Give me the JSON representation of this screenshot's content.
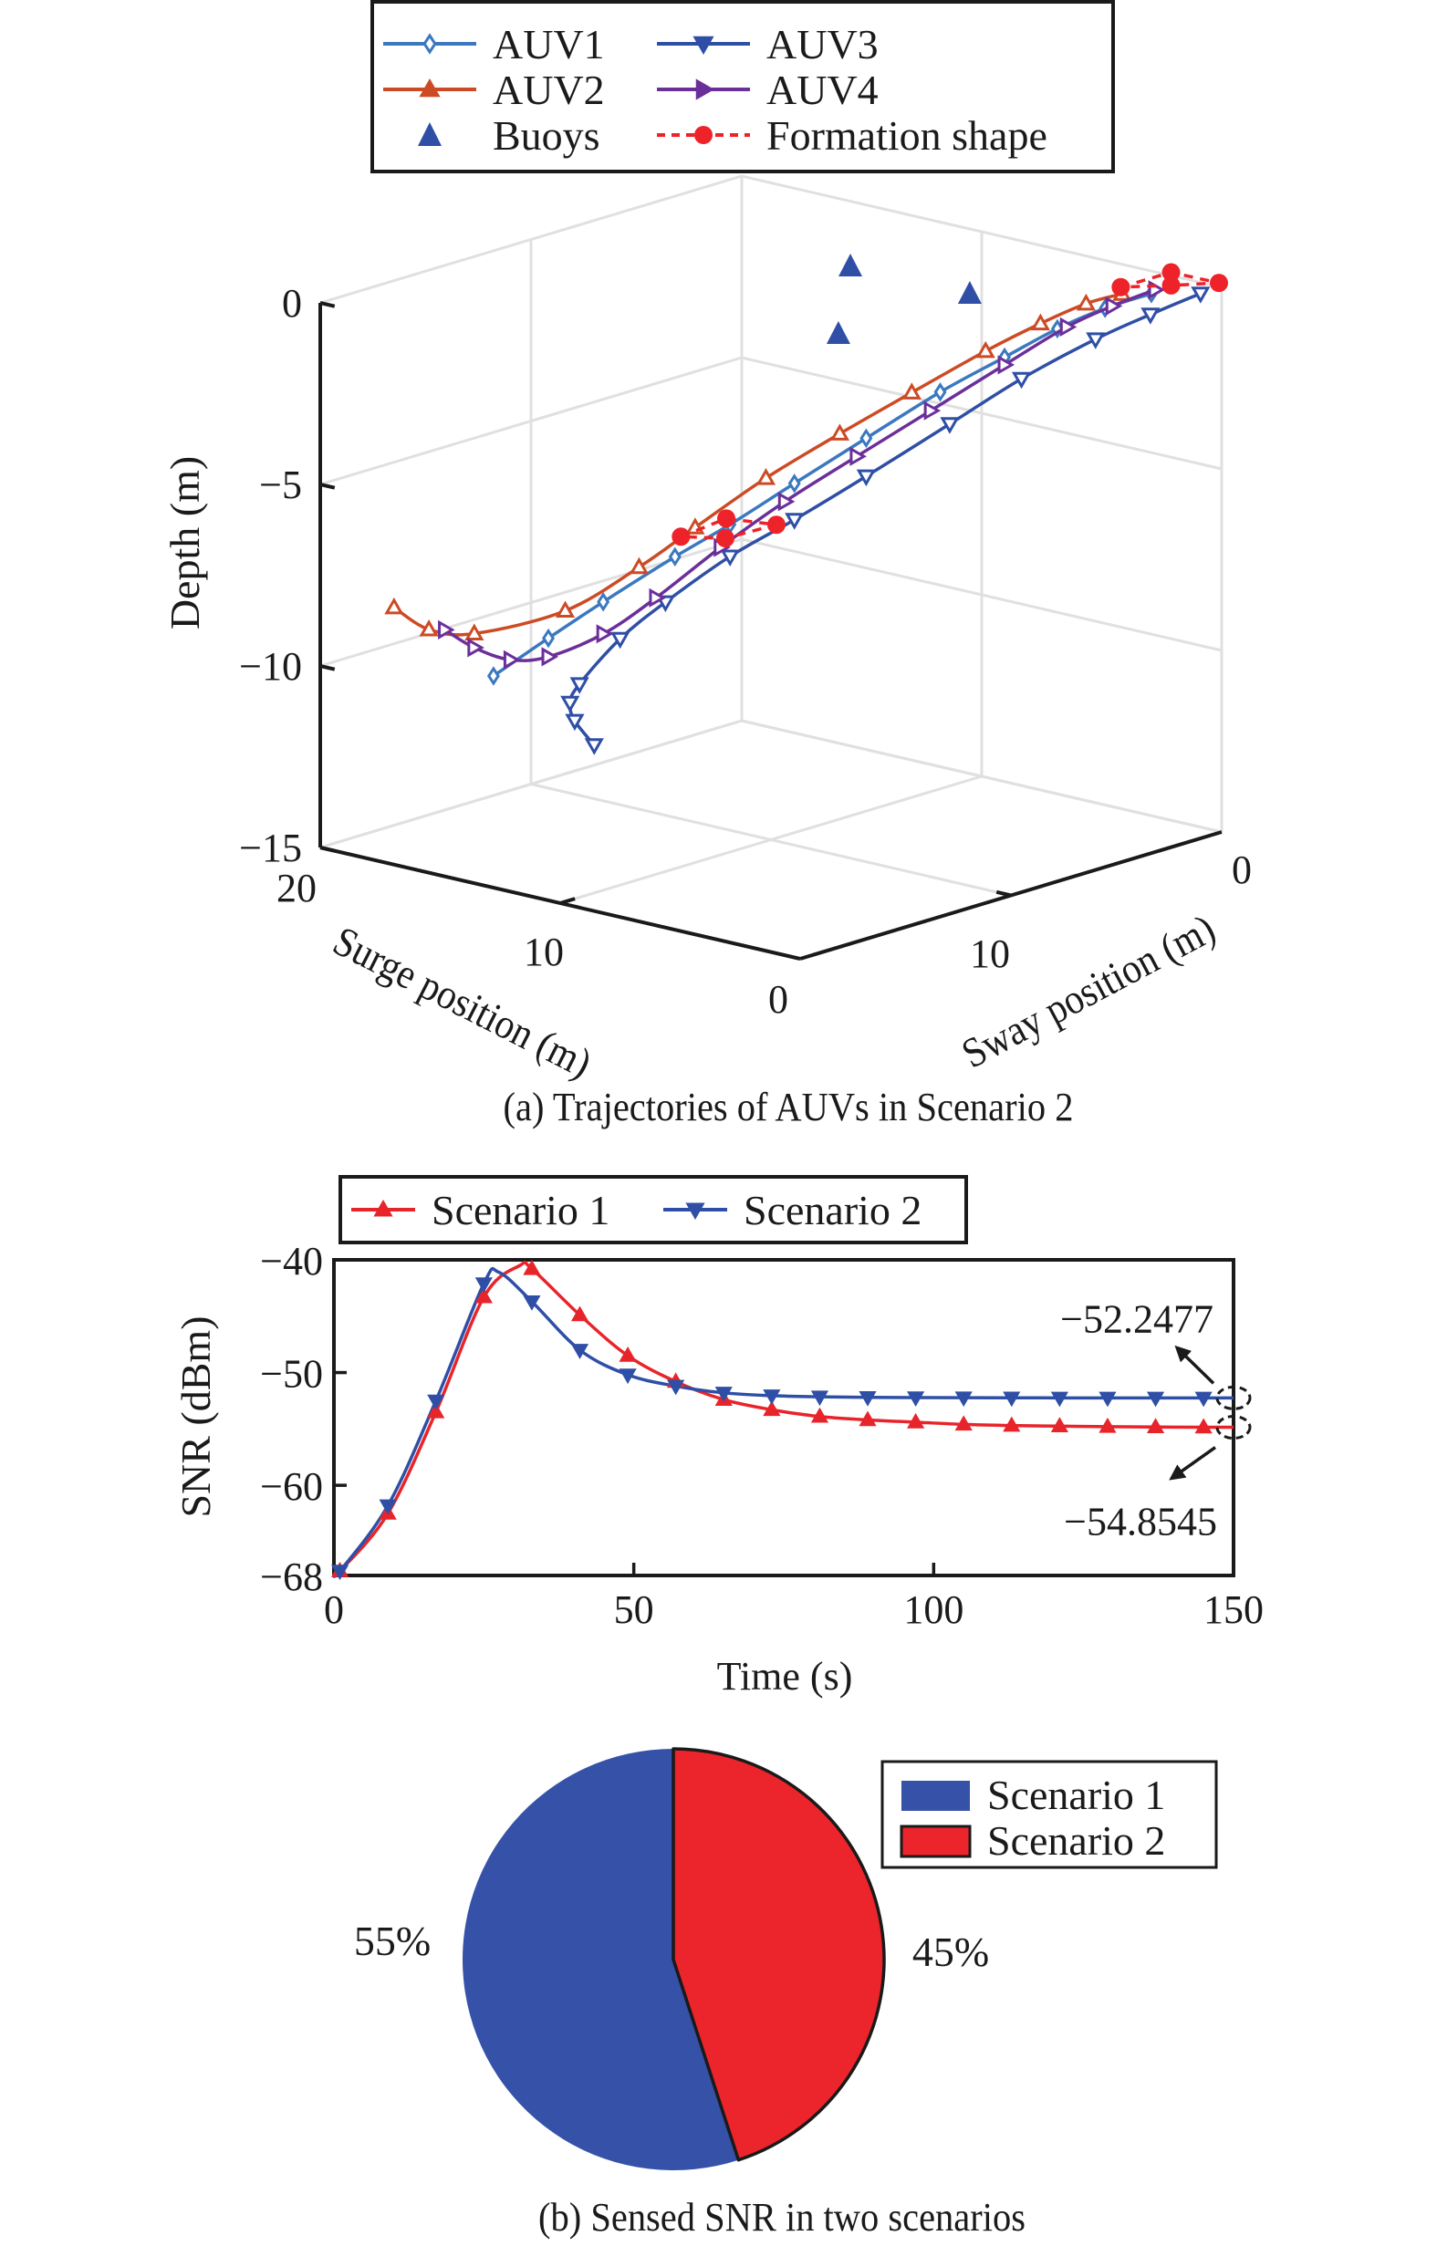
{
  "chart_data": [
    {
      "id": "trajectories",
      "type": "line3d",
      "caption": "(a) Trajectories of AUVs in Scenario 2",
      "xlabel": "Surge position (m)",
      "ylabel": "Sway position (m)",
      "zlabel": "Depth (m)",
      "xlim": [
        0,
        20
      ],
      "ylim": [
        0,
        20
      ],
      "zlim": [
        -15,
        0
      ],
      "xticks": [
        {
          "v": 0,
          "label": "0"
        },
        {
          "v": 10,
          "label": "10"
        },
        {
          "v": 20,
          "label": "20"
        }
      ],
      "yticks": [
        {
          "v": 0,
          "label": "0"
        },
        {
          "v": 10,
          "label": "10"
        }
      ],
      "zticks": [
        {
          "v": 0,
          "label": "0"
        },
        {
          "v": -5,
          "label": "−5"
        },
        {
          "v": -10,
          "label": "−10"
        },
        {
          "v": -15,
          "label": "−15"
        }
      ],
      "grid": true,
      "legend_position": "top",
      "legend": [
        {
          "label": "AUV1",
          "key": "auv1"
        },
        {
          "label": "AUV3",
          "key": "auv3"
        },
        {
          "label": "AUV2",
          "key": "auv2"
        },
        {
          "label": "AUV4",
          "key": "auv4"
        },
        {
          "label": "Buoys",
          "key": "buoys"
        },
        {
          "label": "Formation shape",
          "key": "formation"
        }
      ],
      "series": [
        {
          "key": "auv1",
          "name": "AUV1",
          "color": "#3b78c0",
          "marker": "diamond",
          "points": [
            [
              17.61,
              14.5,
              -10.87
            ],
            [
              16.29,
              13.4,
              -9.82
            ],
            [
              14.97,
              12.3,
              -8.81
            ],
            [
              13.21,
              10.9,
              -7.54
            ],
            [
              11.88,
              9.8,
              -6.64
            ],
            [
              10.34,
              8.5,
              -5.5
            ],
            [
              8.58,
              7.1,
              -4.23
            ],
            [
              6.81,
              5.6,
              -2.95
            ],
            [
              5.27,
              4.3,
              -1.98
            ],
            [
              3.95,
              3.3,
              -1.17
            ],
            [
              2.84,
              2.3,
              -0.61
            ],
            [
              1.7,
              1.4,
              -0.19
            ]
          ]
        },
        {
          "key": "auv2",
          "name": "AUV2",
          "color": "#cc4b25",
          "marker": "triangle-up",
          "points": [
            [
              20.0,
              16.5,
              -9.0
            ],
            [
              19.16,
              15.8,
              -9.6
            ],
            [
              18.06,
              14.9,
              -9.7
            ],
            [
              15.85,
              13.1,
              -9.05
            ],
            [
              14.09,
              11.6,
              -7.84
            ],
            [
              12.72,
              10.5,
              -6.73
            ],
            [
              11.0,
              9.1,
              -5.35
            ],
            [
              9.24,
              7.6,
              -4.12
            ],
            [
              7.47,
              6.2,
              -2.96
            ],
            [
              5.71,
              4.7,
              -1.81
            ],
            [
              4.39,
              3.6,
              -1.04
            ],
            [
              3.28,
              2.7,
              -0.48
            ],
            [
              2.4,
              2.0,
              -0.2
            ]
          ]
        },
        {
          "key": "auv3",
          "name": "AUV3",
          "color": "#2f4fa6",
          "marker": "triangle-down",
          "points": [
            [
              15.17,
              12.5,
              -12.75
            ],
            [
              15.63,
              12.9,
              -12.08
            ],
            [
              15.74,
              13.0,
              -11.58
            ],
            [
              15.52,
              12.8,
              -11.07
            ],
            [
              14.53,
              12.0,
              -9.81
            ],
            [
              13.43,
              11.1,
              -8.79
            ],
            [
              11.88,
              9.8,
              -7.52
            ],
            [
              10.34,
              8.5,
              -6.5
            ],
            [
              8.58,
              7.1,
              -5.28
            ],
            [
              6.59,
              5.4,
              -3.83
            ],
            [
              4.83,
              4.0,
              -2.56
            ],
            [
              3.06,
              2.5,
              -1.46
            ],
            [
              1.74,
              1.4,
              -0.77
            ],
            [
              0.53,
              0.4,
              -0.18
            ]
          ]
        },
        {
          "key": "auv4",
          "name": "AUV4",
          "color": "#6b2f9a",
          "marker": "triangle-right",
          "points": [
            [
              18.76,
              15.5,
              -9.6
            ],
            [
              18.06,
              14.9,
              -10.09
            ],
            [
              17.17,
              14.2,
              -10.41
            ],
            [
              16.29,
              13.4,
              -10.33
            ],
            [
              14.97,
              12.3,
              -9.69
            ],
            [
              13.65,
              11.3,
              -8.67
            ],
            [
              12.1,
              10.0,
              -7.27
            ],
            [
              10.56,
              8.7,
              -6.0
            ],
            [
              8.8,
              7.3,
              -4.73
            ],
            [
              7.03,
              5.8,
              -3.46
            ],
            [
              5.27,
              4.3,
              -2.19
            ],
            [
              3.73,
              3.1,
              -1.12
            ],
            [
              2.62,
              2.2,
              -0.53
            ],
            [
              1.63,
              1.3,
              -0.09
            ]
          ]
        }
      ],
      "buoys": {
        "color": "#2f4fa6",
        "points": [
          [
            10.38,
            5.8,
            0
          ],
          [
            5.43,
            5.77,
            0
          ],
          [
            5.38,
            12.06,
            0
          ]
        ]
      },
      "formations": {
        "color": "#ee2229",
        "shapes": [
          [
            [
              13.05,
              10.8,
              -6.98
            ],
            [
              11.95,
              9.9,
              -6.47
            ],
            [
              10.74,
              8.9,
              -6.63
            ],
            [
              11.99,
              9.9,
              -7.02
            ]
          ],
          [
            [
              2.45,
              2.0,
              -0.02
            ],
            [
              1.23,
              1.0,
              0.4
            ],
            [
              0.07,
              0.05,
              0.12
            ],
            [
              1.23,
              1.0,
              0.04
            ]
          ]
        ]
      }
    },
    {
      "id": "snr",
      "type": "line",
      "xlabel": "Time (s)",
      "ylabel": "SNR (dBm)",
      "xlim": [
        0,
        150
      ],
      "ylim": [
        -68,
        -40
      ],
      "xticks": [
        {
          "v": 0,
          "label": "0"
        },
        {
          "v": 50,
          "label": "50"
        },
        {
          "v": 100,
          "label": "100"
        },
        {
          "v": 150,
          "label": "150"
        }
      ],
      "yticks": [
        {
          "v": -40,
          "label": "−40"
        },
        {
          "v": -50,
          "label": "−50"
        },
        {
          "v": -60,
          "label": "−60"
        },
        {
          "v": -68,
          "label": "−68"
        }
      ],
      "grid": false,
      "legend_position": "top",
      "x": [
        1,
        9,
        17,
        25,
        33,
        41,
        49,
        57,
        65,
        73,
        81,
        89,
        97,
        105,
        113,
        121,
        129,
        137,
        145
      ],
      "series": [
        {
          "key": "s1",
          "name": "Scenario 1",
          "color": "#e8242b",
          "marker": "triangle-up",
          "values": [
            -67.6,
            -62.5,
            -53.5,
            -43.3,
            -40.8,
            -44.9,
            -48.5,
            -50.8,
            -52.4,
            -53.3,
            -53.9,
            -54.2,
            -54.4,
            -54.6,
            -54.7,
            -54.75,
            -54.8,
            -54.83,
            -54.85
          ],
          "peak": {
            "t": 31,
            "v": -40.5
          },
          "final": -54.8545
        },
        {
          "key": "s2",
          "name": "Scenario 2",
          "color": "#2f4fa6",
          "marker": "triangle-down",
          "values": [
            -67.6,
            -61.8,
            -52.5,
            -42.1,
            -43.7,
            -48.0,
            -50.2,
            -51.2,
            -51.8,
            -52.05,
            -52.15,
            -52.2,
            -52.22,
            -52.23,
            -52.24,
            -52.245,
            -52.247,
            -52.247,
            -52.2477
          ],
          "peak": {
            "t": 27.5,
            "v": -41.1
          },
          "final": -52.2477
        }
      ],
      "annotations": [
        {
          "series": "s2",
          "text": "−52.2477",
          "position": "above-right"
        },
        {
          "series": "s1",
          "text": "−54.8545",
          "position": "below-right"
        }
      ]
    },
    {
      "id": "pie",
      "type": "pie",
      "caption": "(b) Sensed SNR in two scenarios",
      "legend_position": "top-right",
      "slices": [
        {
          "label": "Scenario 1",
          "value": 55,
          "text": "55%",
          "color": "#3551a8"
        },
        {
          "label": "Scenario 2",
          "value": 45,
          "text": "45%",
          "color": "#ec242b"
        }
      ]
    }
  ]
}
